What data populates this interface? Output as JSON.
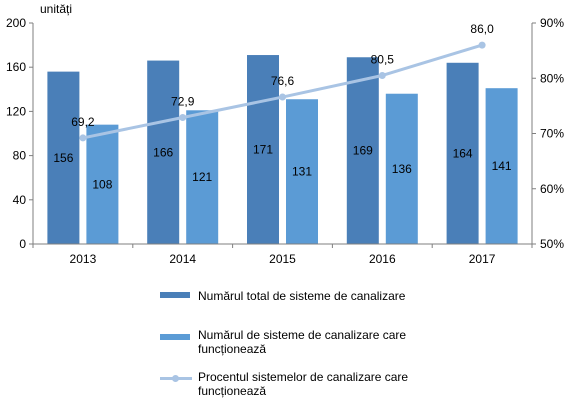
{
  "chart_data": {
    "type": "bar+line",
    "unit_label": "unități",
    "categories": [
      "2013",
      "2014",
      "2015",
      "2016",
      "2017"
    ],
    "series": [
      {
        "name": "Numărul total de sisteme de canalizare",
        "type": "bar",
        "axis": "left",
        "values": [
          156,
          166,
          171,
          169,
          164
        ],
        "labels": [
          "156",
          "166",
          "171",
          "169",
          "164"
        ],
        "color": "#4a7fb8"
      },
      {
        "name": "Numărul  de sisteme de canalizare care funcționează",
        "type": "bar",
        "axis": "left",
        "values": [
          108,
          121,
          131,
          136,
          141
        ],
        "labels": [
          "108",
          "121",
          "131",
          "136",
          "141"
        ],
        "color": "#5b9bd5"
      },
      {
        "name": "Procentul sistemelor de canalizare care funcționează",
        "type": "line",
        "axis": "right",
        "values": [
          69.2,
          72.9,
          76.6,
          80.5,
          86.0
        ],
        "labels": [
          "69,2",
          "72,9",
          "76,6",
          "80,5",
          "86,0"
        ],
        "color": "#a9c4e4"
      }
    ],
    "ylim_left": [
      0,
      200
    ],
    "yticks_left": [
      0,
      40,
      80,
      120,
      160,
      200
    ],
    "ylim_right": [
      50,
      90
    ],
    "yticks_right": [
      50,
      60,
      70,
      80,
      90
    ],
    "yticklabels_right": [
      "50%",
      "60%",
      "70%",
      "80%",
      "90%"
    ],
    "grid": false,
    "legend_position": "bottom"
  },
  "legend": {
    "item1": "Numărul total de sisteme de canalizare",
    "item2_line1": "Numărul  de sisteme de canalizare care",
    "item2_line2": "funcționează",
    "item3_line1": "Procentul sistemelor de canalizare care",
    "item3_line2": "funcționează"
  }
}
